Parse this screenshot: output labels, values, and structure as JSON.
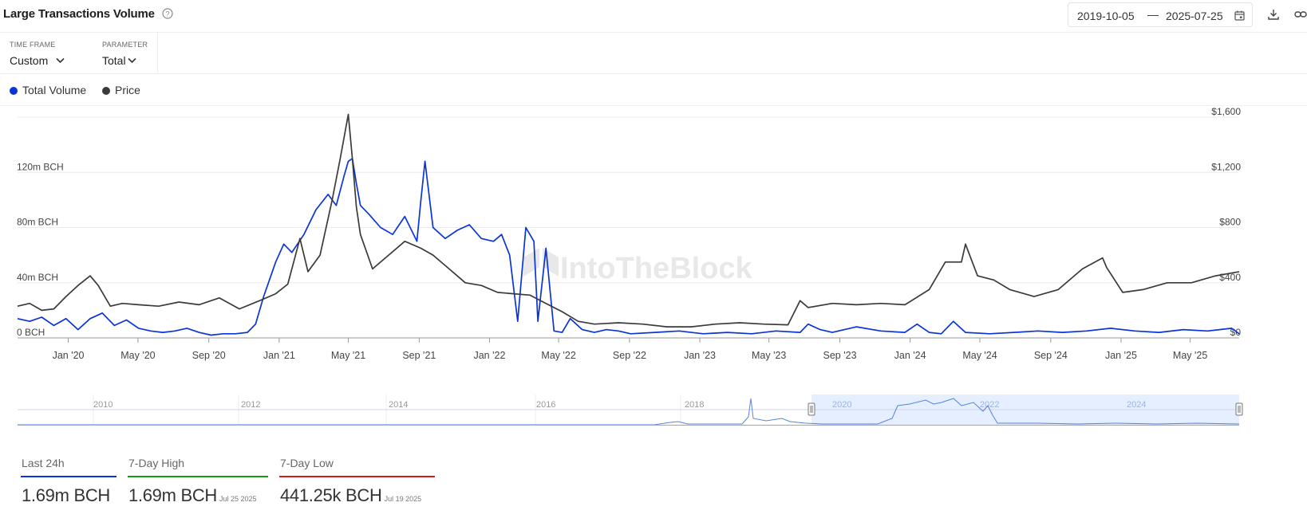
{
  "header": {
    "title": "Large Transactions Volume",
    "date_from": "2019-10-05",
    "date_separator": "—",
    "date_to": "2025-07-25"
  },
  "controls": {
    "timeframe_label": "TIME FRAME",
    "timeframe_value": "Custom",
    "parameter_label": "PARAMETER",
    "parameter_value": "Total"
  },
  "legend": {
    "items": [
      {
        "label": "Total Volume",
        "color": "#0a34d8"
      },
      {
        "label": "Price",
        "color": "#3a3a3a"
      }
    ]
  },
  "watermark": "IntoTheBlock",
  "chart_data": {
    "type": "line",
    "x_tick_labels": [
      "Jan '20",
      "May '20",
      "Sep '20",
      "Jan '21",
      "May '21",
      "Sep '21",
      "Jan '22",
      "May '22",
      "Sep '22",
      "Jan '23",
      "May '23",
      "Sep '23",
      "Jan '24",
      "May '24",
      "Sep '24",
      "Jan '25",
      "May '25"
    ],
    "x_range": [
      "2019-10-05",
      "2025-07-25"
    ],
    "y_left": {
      "ticks": [
        "0 BCH",
        "40m BCH",
        "80m BCH",
        "120m BCH"
      ],
      "range": [
        0,
        160
      ]
    },
    "y_right": {
      "ticks": [
        "$0",
        "$400",
        "$800",
        "$1,200",
        "$1,600"
      ],
      "range": [
        0,
        1600
      ]
    },
    "grid": true,
    "series": [
      {
        "name": "Total Volume",
        "axis": "left",
        "color": "#0a34d8",
        "x": [
          "2019-10-05",
          "2019-10-26",
          "2019-11-16",
          "2019-12-07",
          "2019-12-28",
          "2020-01-18",
          "2020-02-08",
          "2020-02-29",
          "2020-03-21",
          "2020-04-11",
          "2020-05-02",
          "2020-05-23",
          "2020-06-13",
          "2020-07-04",
          "2020-07-25",
          "2020-08-15",
          "2020-09-05",
          "2020-09-26",
          "2020-10-17",
          "2020-11-07",
          "2020-11-21",
          "2020-12-05",
          "2020-12-26",
          "2021-01-09",
          "2021-01-23",
          "2021-02-13",
          "2021-03-06",
          "2021-03-27",
          "2021-04-10",
          "2021-04-24",
          "2021-05-01",
          "2021-05-08",
          "2021-05-15",
          "2021-05-22",
          "2021-06-05",
          "2021-06-26",
          "2021-07-17",
          "2021-08-07",
          "2021-08-28",
          "2021-09-04",
          "2021-09-11",
          "2021-09-25",
          "2021-10-16",
          "2021-11-06",
          "2021-11-27",
          "2021-12-18",
          "2022-01-08",
          "2022-01-22",
          "2022-02-05",
          "2022-02-19",
          "2022-03-05",
          "2022-03-19",
          "2022-03-26",
          "2022-04-09",
          "2022-04-23",
          "2022-05-07",
          "2022-05-21",
          "2022-06-11",
          "2022-07-02",
          "2022-07-23",
          "2022-08-13",
          "2022-09-03",
          "2022-10-15",
          "2022-11-26",
          "2023-01-07",
          "2023-02-18",
          "2023-04-01",
          "2023-05-13",
          "2023-06-24",
          "2023-07-08",
          "2023-07-29",
          "2023-08-19",
          "2023-09-30",
          "2023-11-11",
          "2023-12-23",
          "2024-01-13",
          "2024-02-03",
          "2024-02-24",
          "2024-03-16",
          "2024-04-06",
          "2024-05-18",
          "2024-06-29",
          "2024-08-10",
          "2024-09-21",
          "2024-11-02",
          "2024-12-14",
          "2025-01-25",
          "2025-03-08",
          "2025-04-19",
          "2025-05-31",
          "2025-07-12",
          "2025-07-25"
        ],
        "values": [
          14,
          12,
          15,
          9,
          14,
          6,
          14,
          18,
          9,
          13,
          7,
          5,
          4,
          5,
          7,
          4,
          2,
          3,
          3,
          4,
          10,
          30,
          55,
          68,
          62,
          75,
          93,
          104,
          96,
          118,
          128,
          130,
          112,
          96,
          90,
          80,
          75,
          88,
          70,
          100,
          128,
          80,
          72,
          78,
          82,
          72,
          70,
          75,
          60,
          12,
          80,
          70,
          12,
          65,
          5,
          4,
          14,
          6,
          4,
          6,
          5,
          3,
          4,
          5,
          3,
          4,
          3,
          5,
          4,
          10,
          6,
          4,
          8,
          5,
          4,
          10,
          4,
          3,
          12,
          4,
          3,
          4,
          5,
          4,
          5,
          7,
          5,
          4,
          6,
          5,
          7,
          3
        ]
      },
      {
        "name": "Price",
        "axis": "right",
        "color": "#3a3a3a",
        "x": [
          "2019-10-05",
          "2019-10-26",
          "2019-11-16",
          "2019-12-07",
          "2019-12-28",
          "2020-01-18",
          "2020-02-08",
          "2020-02-22",
          "2020-03-14",
          "2020-04-04",
          "2020-05-02",
          "2020-06-06",
          "2020-07-11",
          "2020-08-15",
          "2020-09-19",
          "2020-10-24",
          "2020-11-28",
          "2020-12-26",
          "2021-01-16",
          "2021-02-06",
          "2021-02-20",
          "2021-03-13",
          "2021-04-03",
          "2021-04-17",
          "2021-05-01",
          "2021-05-08",
          "2021-05-15",
          "2021-05-22",
          "2021-06-12",
          "2021-07-10",
          "2021-08-07",
          "2021-09-04",
          "2021-09-25",
          "2021-10-23",
          "2021-11-20",
          "2021-12-18",
          "2022-01-15",
          "2022-02-12",
          "2022-03-12",
          "2022-04-09",
          "2022-05-07",
          "2022-06-04",
          "2022-07-02",
          "2022-08-13",
          "2022-09-24",
          "2022-11-05",
          "2022-12-17",
          "2023-01-28",
          "2023-03-11",
          "2023-04-22",
          "2023-06-03",
          "2023-06-24",
          "2023-07-08",
          "2023-08-19",
          "2023-09-30",
          "2023-11-11",
          "2023-12-23",
          "2024-02-03",
          "2024-03-02",
          "2024-03-30",
          "2024-04-06",
          "2024-04-27",
          "2024-05-25",
          "2024-06-22",
          "2024-08-03",
          "2024-09-14",
          "2024-10-26",
          "2024-11-30",
          "2024-12-07",
          "2025-01-04",
          "2025-02-08",
          "2025-03-22",
          "2025-05-03",
          "2025-06-14",
          "2025-07-25"
        ],
        "values": [
          230,
          250,
          200,
          210,
          300,
          380,
          450,
          380,
          230,
          250,
          240,
          230,
          260,
          240,
          290,
          210,
          270,
          320,
          390,
          720,
          480,
          600,
          1000,
          1300,
          1620,
          1300,
          950,
          750,
          500,
          600,
          700,
          650,
          600,
          500,
          400,
          380,
          330,
          320,
          310,
          250,
          190,
          120,
          100,
          110,
          100,
          80,
          80,
          100,
          110,
          100,
          95,
          270,
          220,
          250,
          240,
          250,
          240,
          350,
          550,
          550,
          680,
          450,
          420,
          350,
          300,
          350,
          500,
          580,
          510,
          330,
          350,
          400,
          400,
          450,
          480
        ]
      }
    ]
  },
  "navigator": {
    "year_labels": [
      "2010",
      "2012",
      "2014",
      "2016",
      "2018",
      "2020",
      "2022",
      "2024"
    ]
  },
  "stats": [
    {
      "label": "Last 24h",
      "value": "1.69m BCH",
      "date": "",
      "color": "#0a34d8"
    },
    {
      "label": "7-Day High",
      "value": "1.69m BCH",
      "date": "Jul 25 2025",
      "color": "#159a15"
    },
    {
      "label": "7-Day Low",
      "value": "441.25k BCH",
      "date": "Jul 19 2025",
      "color": "#d11a1a"
    }
  ]
}
